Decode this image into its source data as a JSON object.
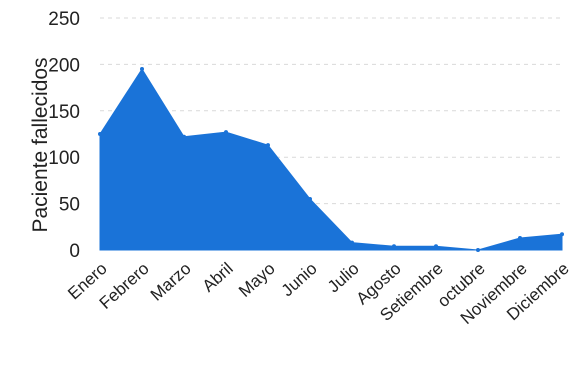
{
  "chart_data": {
    "type": "area",
    "categories": [
      "Enero",
      "Febrero",
      "Marzo",
      "Abril",
      "Mayo",
      "Junio",
      "Julio",
      "Agosto",
      "Setiembre",
      "octubre",
      "Noviembre",
      "Diciembre"
    ],
    "series": [
      {
        "values": [
          125,
          195,
          122,
          127,
          113,
          55,
          8,
          4,
          4,
          0,
          13,
          17
        ]
      }
    ],
    "ylabel": "Paciente fallecidos",
    "xlabel": "",
    "ylim": [
      0,
      250
    ],
    "yticks": [
      "0",
      "50",
      "100",
      "150",
      "200",
      "250"
    ],
    "grid": true,
    "colors": {
      "fill": "#1a73d8",
      "grid": "#d9d9d9",
      "text": "#222222"
    }
  }
}
